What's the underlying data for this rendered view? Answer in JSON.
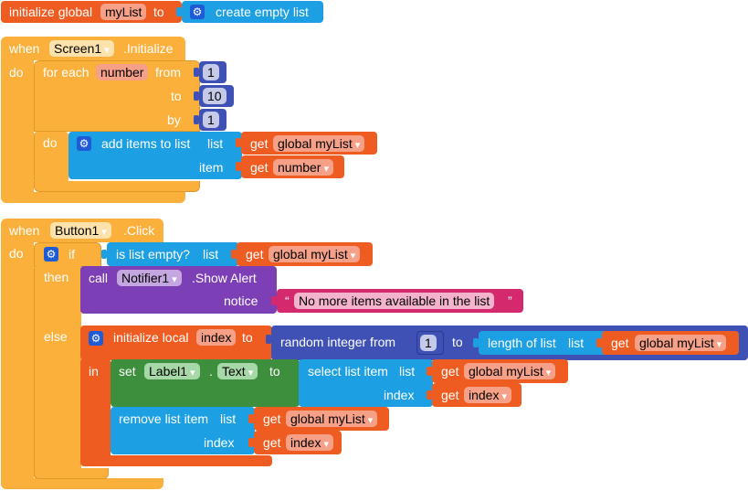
{
  "blocks": {
    "global_init": {
      "prefix": "initialize global",
      "var_name": "myList",
      "to_label": "to",
      "value_label": "create empty list"
    },
    "screen_event": {
      "when_label": "when",
      "component": "Screen1",
      "event": ".Initialize",
      "do_label": "do",
      "foreach": {
        "label": "for each",
        "var_name": "number",
        "from_label": "from",
        "from_value": "1",
        "to_label": "to",
        "to_value": "10",
        "by_label": "by",
        "by_value": "1",
        "do_label": "do"
      },
      "add_items": {
        "label": "add items to list",
        "list_label": "list",
        "item_label": "item",
        "get_label": "get",
        "list_var": "global myList",
        "item_var": "number"
      }
    },
    "button_event": {
      "when_label": "when",
      "component": "Button1",
      "event": ".Click",
      "do_label": "do",
      "if_label": "if",
      "then_label": "then",
      "else_label": "else",
      "is_empty": {
        "label": "is list empty?",
        "list_label": "list",
        "get_label": "get",
        "var": "global myList"
      },
      "alert": {
        "call_label": "call",
        "component": "Notifier1",
        "method": ".Show Alert",
        "notice_label": "notice",
        "quote_open": "“",
        "message": "No more items available in the list",
        "quote_close": "”"
      },
      "local_init": {
        "label": "initialize local",
        "var_name": "index",
        "to_label": "to",
        "in_label": "in",
        "random_label": "random integer from",
        "from_value": "1",
        "rand_to_label": "to",
        "length_label": "length of list",
        "list_label": "list",
        "get_label": "get",
        "list_var": "global myList"
      },
      "set_label": {
        "set_label": "set",
        "component": "Label1",
        "dot": ".",
        "property": "Text",
        "to_label": "to",
        "select_label": "select list item",
        "list_label": "list",
        "index_label": "index",
        "get_label": "get",
        "list_var": "global myList",
        "index_var": "index"
      },
      "remove": {
        "label": "remove list item",
        "list_label": "list",
        "index_label": "index",
        "get_label": "get",
        "list_var": "global myList",
        "index_var": "index"
      }
    }
  },
  "icons": {
    "mutator": "gear-icon",
    "dropdown": "chevron-down-icon"
  },
  "colors": {
    "event": "#fbb03b",
    "control": "#fbb03b",
    "variable": "#ef5c22",
    "list": "#1ca0e3",
    "math": "#3f51b5",
    "component": "#7c3fb5",
    "text": "#d42a6d",
    "setter": "#3d8f3d"
  }
}
